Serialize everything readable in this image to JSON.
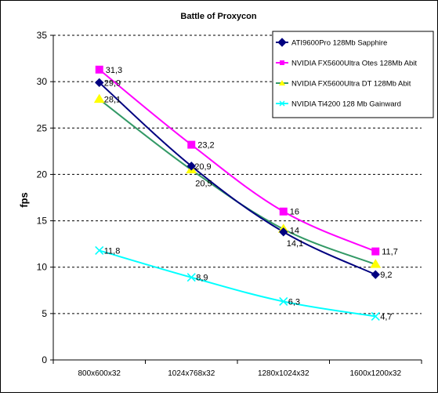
{
  "chart_data": {
    "type": "line",
    "title": "Battle of Proxycon",
    "xlabel": "",
    "ylabel": "fps",
    "categories": [
      "800x600x32",
      "1024x768x32",
      "1280x1024x32",
      "1600x1200x32"
    ],
    "ylim": [
      0,
      35
    ],
    "yticks": [
      0,
      5,
      10,
      15,
      20,
      25,
      30,
      35
    ],
    "grid": "horizontal dashed",
    "legend_position": "top-right",
    "series": [
      {
        "name": "ATI9600Pro 128Mb Sapphire",
        "values": [
          29.9,
          20.9,
          13.8,
          9.2
        ],
        "labels": [
          "29,9",
          "20,9",
          "",
          "9,2"
        ],
        "color": "#000080",
        "line_color": "#000080",
        "marker": "diamond"
      },
      {
        "name": "NVIDIA FX5600Ultra Otes 128Mb Abit",
        "values": [
          31.3,
          23.2,
          16,
          11.7
        ],
        "labels": [
          "31,3",
          "23,2",
          "16",
          "11,7"
        ],
        "color": "#ff00ff",
        "line_color": "#ff00ff",
        "marker": "square"
      },
      {
        "name": "NVIDIA FX5600Ultra DT 128Mb Abit",
        "values": [
          28.1,
          20.5,
          14.1,
          10.3
        ],
        "labels": [
          "28,1",
          "20,5",
          "14,1",
          ""
        ],
        "color": "#ffff00",
        "line_color": "#339966",
        "marker": "triangle"
      },
      {
        "name": "NVIDIA Ti4200 128 Mb Gainward",
        "values": [
          11.8,
          8.9,
          6.3,
          4.7
        ],
        "labels": [
          "11,8",
          "8,9",
          "6,3",
          "4,7"
        ],
        "color": "#00ffff",
        "line_color": "#00ffff",
        "marker": "x"
      }
    ],
    "extra_labels": [
      {
        "text": "14",
        "x": "1280x1024x32",
        "y": 14
      }
    ]
  }
}
